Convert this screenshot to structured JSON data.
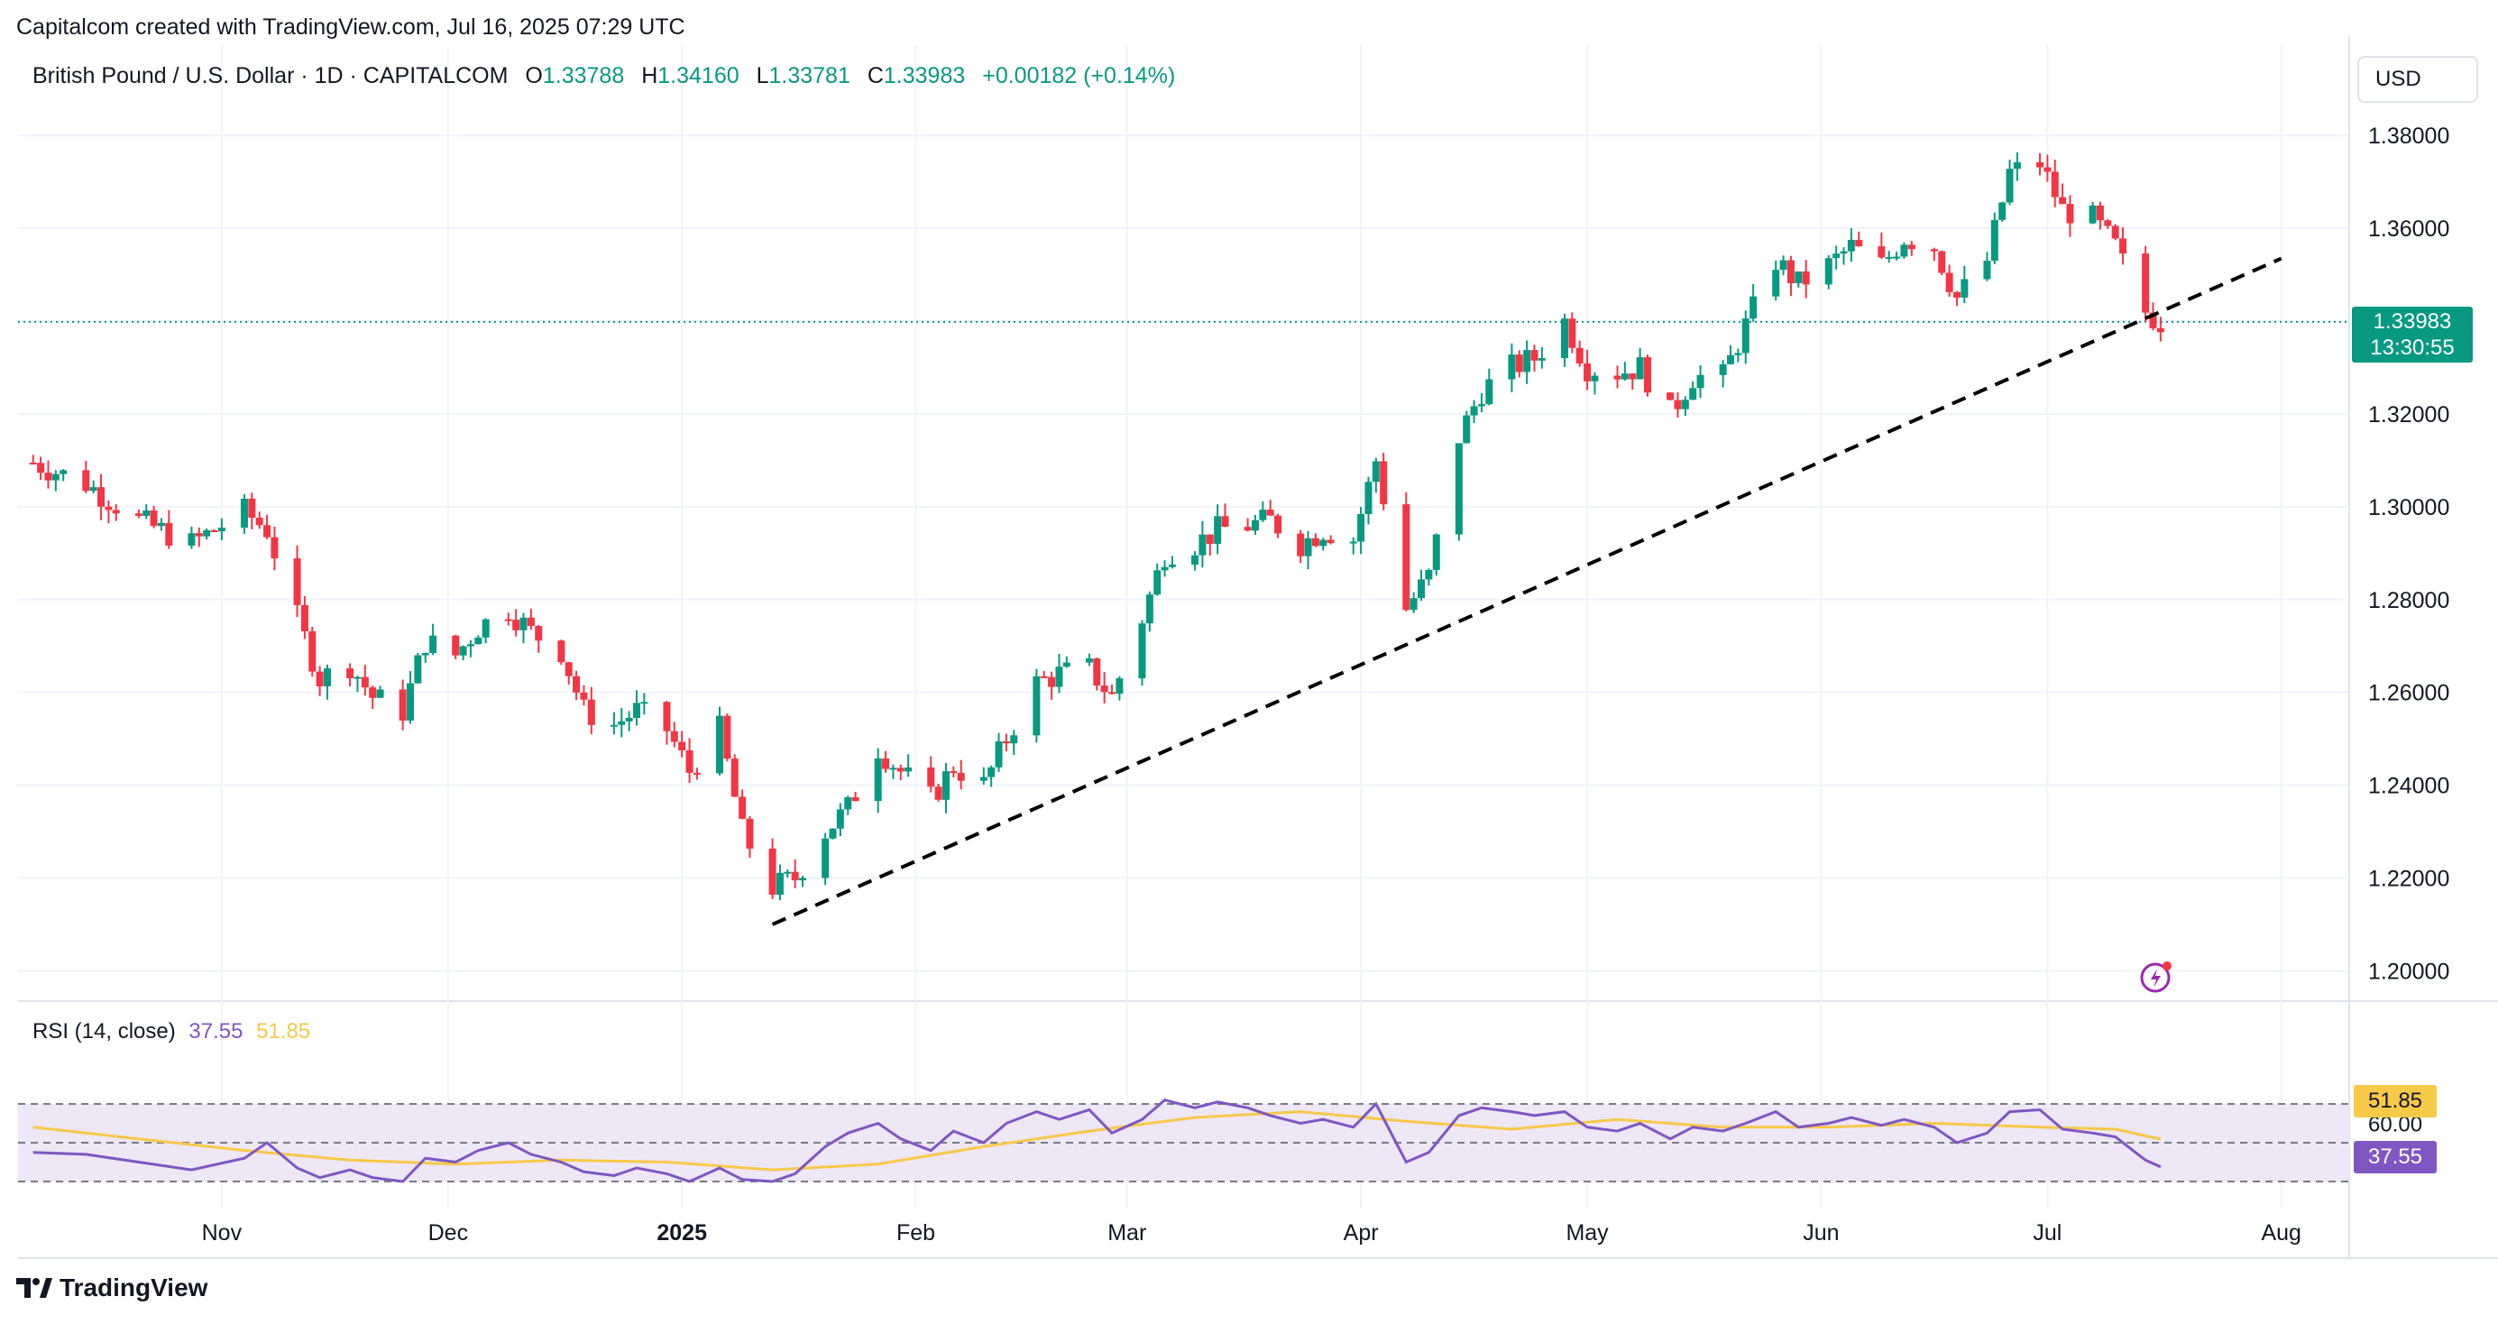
{
  "header": {
    "created": "Capitalcom created with TradingView.com, Jul 16, 2025 07:29 UTC",
    "symbol": "British Pound / U.S. Dollar · 1D · CAPITALCOM",
    "open_label": "O",
    "open": "1.33788",
    "high_label": "H",
    "high": "1.34160",
    "low_label": "L",
    "low": "1.33781",
    "close_label": "C",
    "close": "1.33983",
    "change": "+0.00182 (+0.14%)"
  },
  "currency_label": "USD",
  "last_price": {
    "price": "1.33983",
    "countdown": "13:30:55"
  },
  "rsi": {
    "label": "RSI (14, close)",
    "value": "37.55",
    "ma_value": "51.85",
    "axis_label": "60.00",
    "band_upper": 70,
    "band_mid": 50,
    "band_lower": 30
  },
  "brand": "TradingView",
  "colors": {
    "up": "#089981",
    "down": "#f23645",
    "rsi_line": "#7e57c2",
    "rsi_ma": "#f7c948",
    "rsi_band": "#ede7f6",
    "trendline": "#000000"
  },
  "chart_data": {
    "type": "candlestick",
    "title": "British Pound / U.S. Dollar · 1D · CAPITALCOM",
    "y_ticks": [
      "1.38000",
      "1.36000",
      "1.34000",
      "1.32000",
      "1.30000",
      "1.28000",
      "1.26000",
      "1.24000",
      "1.22000",
      "1.20000"
    ],
    "ylim": [
      1.1925,
      1.3985
    ],
    "x_ticks": [
      {
        "label": "Nov",
        "date": "2024-11-01"
      },
      {
        "label": "Dec",
        "date": "2024-12-01"
      },
      {
        "label": "2025",
        "date": "2025-01-01",
        "bold": true
      },
      {
        "label": "Feb",
        "date": "2025-02-01"
      },
      {
        "label": "Mar",
        "date": "2025-03-01"
      },
      {
        "label": "Apr",
        "date": "2025-04-01"
      },
      {
        "label": "May",
        "date": "2025-05-01"
      },
      {
        "label": "Jun",
        "date": "2025-06-01"
      },
      {
        "label": "Jul",
        "date": "2025-07-01"
      },
      {
        "label": "Aug",
        "date": "2025-08-01"
      }
    ],
    "x_range": [
      "2024-10-05",
      "2025-08-10"
    ],
    "trendline": {
      "from": [
        "2025-01-13",
        1.21
      ],
      "to": [
        "2025-08-01",
        1.3535
      ]
    },
    "last_price_line": 1.33983,
    "close_series": [
      [
        "2024-10-07",
        1.3095
      ],
      [
        "2024-10-14",
        1.305
      ],
      [
        "2024-10-21",
        1.297
      ],
      [
        "2024-10-28",
        1.292
      ],
      [
        "2024-11-04",
        1.299
      ],
      [
        "2024-11-07",
        1.295
      ],
      [
        "2024-11-11",
        1.276
      ],
      [
        "2024-11-14",
        1.263
      ],
      [
        "2024-11-18",
        1.266
      ],
      [
        "2024-11-21",
        1.259
      ],
      [
        "2024-11-25",
        1.256
      ],
      [
        "2024-11-28",
        1.271
      ],
      [
        "2024-12-02",
        1.268
      ],
      [
        "2024-12-05",
        1.274
      ],
      [
        "2024-12-09",
        1.278
      ],
      [
        "2024-12-12",
        1.273
      ],
      [
        "2024-12-16",
        1.269
      ],
      [
        "2024-12-19",
        1.256
      ],
      [
        "2024-12-23",
        1.253
      ],
      [
        "2024-12-26",
        1.256
      ],
      [
        "2024-12-30",
        1.252
      ],
      [
        "2025-01-02",
        1.243
      ],
      [
        "2025-01-06",
        1.252
      ],
      [
        "2025-01-09",
        1.23
      ],
      [
        "2025-01-13",
        1.218
      ],
      [
        "2025-01-16",
        1.22
      ],
      [
        "2025-01-20",
        1.23
      ],
      [
        "2025-01-23",
        1.235
      ],
      [
        "2025-01-27",
        1.248
      ],
      [
        "2025-01-30",
        1.243
      ],
      [
        "2025-02-03",
        1.237
      ],
      [
        "2025-02-06",
        1.244
      ],
      [
        "2025-02-10",
        1.24
      ],
      [
        "2025-02-13",
        1.25
      ],
      [
        "2025-02-17",
        1.262
      ],
      [
        "2025-02-20",
        1.264
      ],
      [
        "2025-02-24",
        1.265
      ],
      [
        "2025-02-27",
        1.259
      ],
      [
        "2025-03-03",
        1.276
      ],
      [
        "2025-03-06",
        1.29
      ],
      [
        "2025-03-10",
        1.292
      ],
      [
        "2025-03-13",
        1.295
      ],
      [
        "2025-03-17",
        1.296
      ],
      [
        "2025-03-20",
        1.297
      ],
      [
        "2025-03-24",
        1.292
      ],
      [
        "2025-03-27",
        1.295
      ],
      [
        "2025-03-31",
        1.293
      ],
      [
        "2025-04-03",
        1.31
      ],
      [
        "2025-04-07",
        1.278
      ],
      [
        "2025-04-10",
        1.285
      ],
      [
        "2025-04-14",
        1.315
      ],
      [
        "2025-04-17",
        1.325
      ],
      [
        "2025-04-21",
        1.33
      ],
      [
        "2025-04-24",
        1.332
      ],
      [
        "2025-04-28",
        1.34
      ],
      [
        "2025-05-01",
        1.33
      ],
      [
        "2025-05-05",
        1.329
      ],
      [
        "2025-05-08",
        1.33
      ],
      [
        "2025-05-12",
        1.32
      ],
      [
        "2025-05-15",
        1.328
      ],
      [
        "2025-05-19",
        1.328
      ],
      [
        "2025-05-22",
        1.339
      ],
      [
        "2025-05-26",
        1.353
      ],
      [
        "2025-05-29",
        1.348
      ],
      [
        "2025-06-02",
        1.352
      ],
      [
        "2025-06-05",
        1.356
      ],
      [
        "2025-06-09",
        1.352
      ],
      [
        "2025-06-12",
        1.358
      ],
      [
        "2025-06-16",
        1.356
      ],
      [
        "2025-06-19",
        1.345
      ],
      [
        "2025-06-23",
        1.353
      ],
      [
        "2025-06-26",
        1.372
      ],
      [
        "2025-06-30",
        1.374
      ],
      [
        "2025-07-03",
        1.364
      ],
      [
        "2025-07-07",
        1.362
      ],
      [
        "2025-07-10",
        1.356
      ],
      [
        "2025-07-14",
        1.342
      ],
      [
        "2025-07-16",
        1.3398
      ]
    ],
    "rsi_series": [
      [
        "2024-10-07",
        45
      ],
      [
        "2024-10-14",
        44
      ],
      [
        "2024-10-21",
        40
      ],
      [
        "2024-10-28",
        36
      ],
      [
        "2024-11-04",
        42
      ],
      [
        "2024-11-07",
        50
      ],
      [
        "2024-11-11",
        37
      ],
      [
        "2024-11-14",
        32
      ],
      [
        "2024-11-18",
        36
      ],
      [
        "2024-11-21",
        32
      ],
      [
        "2024-11-25",
        30
      ],
      [
        "2024-11-28",
        42
      ],
      [
        "2024-12-02",
        40
      ],
      [
        "2024-12-05",
        46
      ],
      [
        "2024-12-09",
        50
      ],
      [
        "2024-12-12",
        44
      ],
      [
        "2024-12-16",
        40
      ],
      [
        "2024-12-19",
        35
      ],
      [
        "2024-12-23",
        33
      ],
      [
        "2024-12-26",
        37
      ],
      [
        "2024-12-30",
        34
      ],
      [
        "2025-01-02",
        30
      ],
      [
        "2025-01-06",
        37
      ],
      [
        "2025-01-09",
        31
      ],
      [
        "2025-01-13",
        30
      ],
      [
        "2025-01-16",
        34
      ],
      [
        "2025-01-20",
        48
      ],
      [
        "2025-01-23",
        55
      ],
      [
        "2025-01-27",
        60
      ],
      [
        "2025-01-30",
        52
      ],
      [
        "2025-02-03",
        46
      ],
      [
        "2025-02-06",
        56
      ],
      [
        "2025-02-10",
        50
      ],
      [
        "2025-02-13",
        60
      ],
      [
        "2025-02-17",
        66
      ],
      [
        "2025-02-20",
        62
      ],
      [
        "2025-02-24",
        67
      ],
      [
        "2025-02-27",
        55
      ],
      [
        "2025-03-03",
        62
      ],
      [
        "2025-03-06",
        72
      ],
      [
        "2025-03-10",
        68
      ],
      [
        "2025-03-13",
        71
      ],
      [
        "2025-03-17",
        68
      ],
      [
        "2025-03-20",
        64
      ],
      [
        "2025-03-24",
        60
      ],
      [
        "2025-03-27",
        62
      ],
      [
        "2025-03-31",
        58
      ],
      [
        "2025-04-03",
        70
      ],
      [
        "2025-04-07",
        40
      ],
      [
        "2025-04-10",
        45
      ],
      [
        "2025-04-14",
        64
      ],
      [
        "2025-04-17",
        68
      ],
      [
        "2025-04-21",
        66
      ],
      [
        "2025-04-24",
        64
      ],
      [
        "2025-04-28",
        66
      ],
      [
        "2025-05-01",
        58
      ],
      [
        "2025-05-05",
        56
      ],
      [
        "2025-05-08",
        60
      ],
      [
        "2025-05-12",
        52
      ],
      [
        "2025-05-15",
        58
      ],
      [
        "2025-05-19",
        56
      ],
      [
        "2025-05-22",
        60
      ],
      [
        "2025-05-26",
        66
      ],
      [
        "2025-05-29",
        58
      ],
      [
        "2025-06-02",
        60
      ],
      [
        "2025-06-05",
        63
      ],
      [
        "2025-06-09",
        59
      ],
      [
        "2025-06-12",
        62
      ],
      [
        "2025-06-16",
        58
      ],
      [
        "2025-06-19",
        50
      ],
      [
        "2025-06-23",
        55
      ],
      [
        "2025-06-26",
        66
      ],
      [
        "2025-06-30",
        67
      ],
      [
        "2025-07-03",
        57
      ],
      [
        "2025-07-07",
        55
      ],
      [
        "2025-07-10",
        53
      ],
      [
        "2025-07-14",
        41
      ],
      [
        "2025-07-16",
        37.55
      ]
    ],
    "rsi_ma_series": [
      [
        "2024-10-07",
        58
      ],
      [
        "2024-10-21",
        52
      ],
      [
        "2024-11-04",
        46
      ],
      [
        "2024-11-18",
        41
      ],
      [
        "2024-12-02",
        39
      ],
      [
        "2024-12-16",
        41
      ],
      [
        "2024-12-30",
        40
      ],
      [
        "2025-01-13",
        36
      ],
      [
        "2025-01-27",
        39
      ],
      [
        "2025-02-10",
        48
      ],
      [
        "2025-02-24",
        56
      ],
      [
        "2025-03-10",
        63
      ],
      [
        "2025-03-24",
        66
      ],
      [
        "2025-04-07",
        61
      ],
      [
        "2025-04-21",
        57
      ],
      [
        "2025-05-05",
        62
      ],
      [
        "2025-05-19",
        58
      ],
      [
        "2025-06-02",
        58
      ],
      [
        "2025-06-16",
        60
      ],
      [
        "2025-06-30",
        58
      ],
      [
        "2025-07-10",
        57
      ],
      [
        "2025-07-16",
        51.85
      ]
    ]
  }
}
